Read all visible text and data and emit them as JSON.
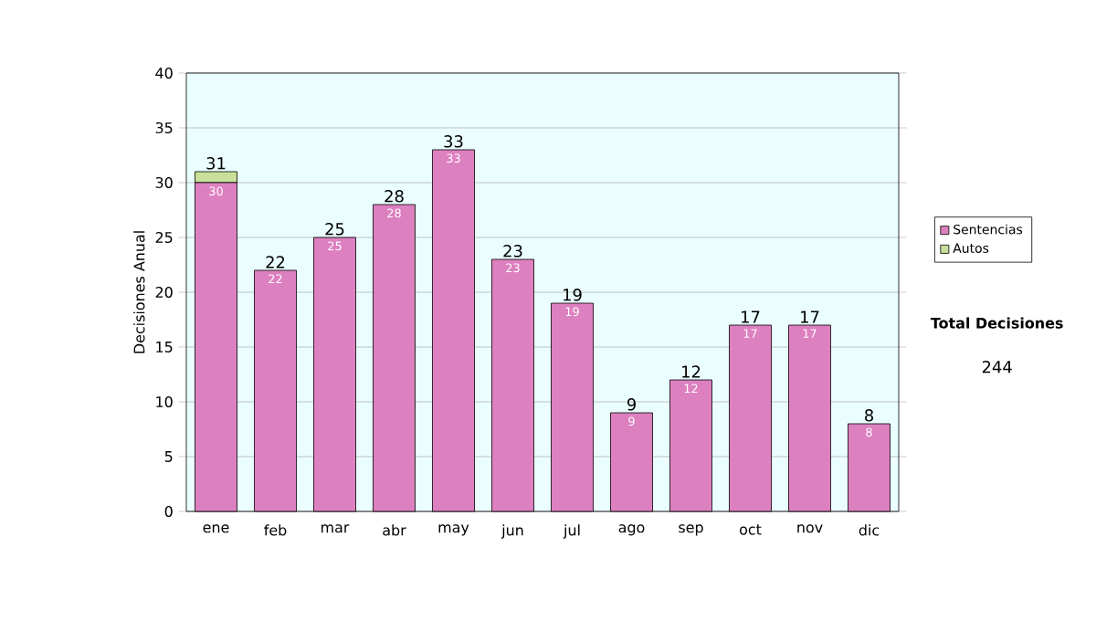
{
  "chart_data": {
    "type": "bar",
    "stacked": true,
    "ylabel": "Decisiones Anual",
    "categories": [
      "ene",
      "feb",
      "mar",
      "abr",
      "may",
      "jun",
      "jul",
      "ago",
      "sep",
      "oct",
      "nov",
      "dic"
    ],
    "series": [
      {
        "name": "Sentencias",
        "color": "#dd80c0",
        "values": [
          30,
          22,
          25,
          28,
          33,
          23,
          19,
          9,
          12,
          17,
          17,
          8
        ],
        "value_labels": [
          "30",
          "22",
          "25",
          "28",
          "33",
          "23",
          "19",
          "9",
          "12",
          "17",
          "17",
          "8"
        ]
      },
      {
        "name": "Autos",
        "color": "#c8e09a",
        "values": [
          1,
          0,
          0,
          0,
          0,
          0,
          0,
          0,
          0,
          0,
          0,
          0
        ]
      }
    ],
    "totals": [
      "31",
      "22",
      "25",
      "28",
      "33",
      "23",
      "19",
      "9",
      "12",
      "17",
      "17",
      "8"
    ],
    "ylim": [
      0,
      40
    ],
    "yticks": [
      0,
      5,
      10,
      15,
      20,
      25,
      30,
      35,
      40
    ],
    "grid": "y",
    "legend": "right",
    "annotations": [
      "Total Decisiones",
      "244"
    ]
  }
}
